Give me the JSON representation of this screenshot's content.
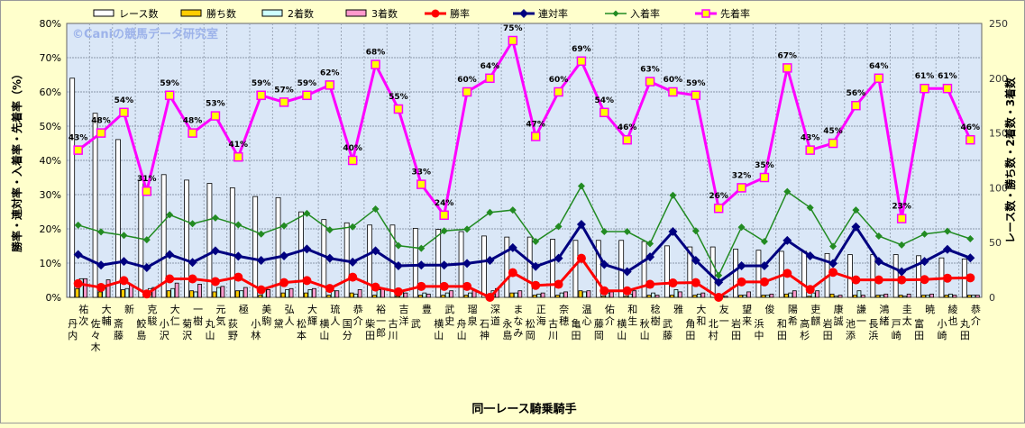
{
  "chart_data": {
    "type": "bar+line",
    "title": "",
    "watermark": "©Caniの競馬データ研究室",
    "xlabel": "同一レース騎乗騎手",
    "ylabel_left": "勝率・連対率・入着率・先着率（%）",
    "ylabel_right": "レース数・勝ち数・2着数・3着数",
    "ylim_left": [
      0,
      80
    ],
    "ylim_right": [
      0,
      250
    ],
    "yticks_left": [
      "0%",
      "10%",
      "20%",
      "30%",
      "40%",
      "50%",
      "60%",
      "70%",
      "80%"
    ],
    "yticks_right": [
      "0",
      "50",
      "100",
      "150",
      "200",
      "250"
    ],
    "legend_position": "top",
    "grid": true,
    "categories": [
      "丹内 祐次",
      "佐々木 大輔",
      "斎藤 新",
      "鮫島 克駿",
      "小沢 大仁",
      "菊沢 一樹",
      "丸山 元気",
      "荻野 極",
      "小林 美駒",
      "黛 弘人",
      "松本 大輝",
      "横山 琉人",
      "国分 恭介",
      "柴田 裕一郎",
      "古川 吉洋",
      "武 豊",
      "横山 武史",
      "舟山 瑠泉",
      "石神 深道",
      "永島 まなみ",
      "松岡 正海",
      "古川 奈穂",
      "亀田 温心",
      "藤岡 佑介",
      "横山 和生",
      "秋山 稔樹",
      "武藤 雅",
      "角田 大和",
      "北村 友一",
      "岩田 望来",
      "浜中 俊",
      "和田 陽希",
      "高杉 吏麒",
      "岩田 康誠",
      "池添 謙一",
      "長浜 鴻緒",
      "戸崎 圭太",
      "富田 暁",
      "小崎 綾也",
      "丸田 恭介"
    ],
    "series": [
      {
        "name": "レース数",
        "type": "bar",
        "axis": "right",
        "color": "#ffffff",
        "values": [
          200,
          168,
          144,
          107,
          112,
          107,
          104,
          100,
          92,
          91,
          78,
          71,
          68,
          66,
          66,
          63,
          62,
          60,
          56,
          55,
          55,
          53,
          52,
          52,
          52,
          51,
          47,
          46,
          46,
          44,
          43,
          42,
          42,
          40,
          39,
          39,
          39,
          38,
          36,
          35
        ]
      },
      {
        "name": "勝ち数",
        "type": "bar",
        "axis": "right",
        "color": "#ffcc00",
        "values": [
          8,
          5,
          7,
          1,
          6,
          6,
          5,
          6,
          2,
          4,
          4,
          2,
          4,
          2,
          1,
          2,
          2,
          2,
          0,
          4,
          2,
          2,
          6,
          1,
          1,
          2,
          2,
          2,
          0,
          2,
          2,
          3,
          1,
          3,
          2,
          2,
          2,
          2,
          2,
          2
        ]
      },
      {
        "name": "2着数",
        "type": "bar",
        "axis": "right",
        "color": "#ccffff",
        "values": [
          17,
          11,
          8,
          8,
          8,
          5,
          9,
          6,
          8,
          7,
          7,
          6,
          3,
          7,
          5,
          4,
          4,
          4,
          6,
          4,
          3,
          4,
          5,
          4,
          3,
          4,
          7,
          3,
          2,
          2,
          2,
          4,
          4,
          1,
          6,
          2,
          1,
          2,
          3,
          2
        ]
      },
      {
        "name": "3着数",
        "type": "bar",
        "axis": "right",
        "color": "#ff99cc",
        "values": [
          17,
          16,
          11,
          9,
          13,
          12,
          10,
          9,
          7,
          8,
          8,
          6,
          7,
          8,
          4,
          3,
          6,
          6,
          8,
          6,
          4,
          5,
          6,
          5,
          6,
          2,
          5,
          4,
          1,
          5,
          3,
          6,
          6,
          2,
          2,
          3,
          3,
          3,
          2,
          2
        ]
      },
      {
        "name": "勝率",
        "type": "line",
        "axis": "left",
        "color": "#ff0000",
        "marker": "circle",
        "values": [
          4.0,
          2.9,
          4.9,
          1.0,
          5.4,
          5.4,
          4.6,
          5.9,
          2.2,
          4.3,
          4.9,
          2.6,
          5.9,
          3.0,
          1.6,
          3.2,
          3.2,
          3.2,
          0,
          7.2,
          3.5,
          3.8,
          11.4,
          1.9,
          1.9,
          3.8,
          4.2,
          4.3,
          0,
          4.5,
          4.5,
          7.0,
          2.3,
          7.3,
          5.1,
          5.1,
          5.1,
          5.2,
          5.6,
          5.7
        ]
      },
      {
        "name": "連対率",
        "type": "line",
        "axis": "left",
        "color": "#000080",
        "marker": "diamond",
        "values": [
          12.5,
          9.4,
          10.5,
          8.7,
          12.5,
          10.2,
          13.6,
          12.0,
          10.8,
          12.1,
          14.1,
          11.4,
          10.3,
          13.6,
          9.2,
          9.4,
          9.4,
          9.9,
          10.8,
          14.5,
          9.0,
          11.4,
          21.3,
          9.6,
          7.5,
          11.8,
          19.2,
          10.8,
          4.4,
          9.2,
          9.2,
          16.6,
          12.1,
          9.9,
          20.6,
          10.5,
          7.5,
          10.5,
          14.0,
          11.5
        ]
      },
      {
        "name": "入着率",
        "type": "line",
        "axis": "left",
        "color": "#228b22",
        "marker": "small-diamond",
        "values": [
          21.1,
          19.1,
          18.1,
          16.8,
          24.1,
          21.5,
          23.2,
          21.2,
          18.5,
          20.9,
          24.5,
          19.7,
          20.6,
          25.8,
          15.1,
          14.3,
          19.4,
          19.9,
          24.8,
          25.5,
          16.3,
          20.7,
          32.5,
          19.2,
          19.2,
          15.7,
          29.8,
          19.4,
          6.4,
          20.5,
          16.3,
          30.9,
          26.2,
          14.9,
          25.5,
          17.9,
          15.3,
          18.5,
          19.3,
          17.1
        ]
      },
      {
        "name": "先着率",
        "type": "line",
        "axis": "left",
        "color": "#ff00ff",
        "marker": "square",
        "marker_fill": "#ffff00",
        "labels": true,
        "values": [
          43,
          48,
          54,
          31,
          59,
          48,
          53,
          41,
          59,
          57,
          59,
          62,
          40,
          68,
          55,
          33,
          24,
          60,
          64,
          75,
          47,
          60,
          69,
          54,
          46,
          63,
          60,
          59,
          26,
          32,
          35,
          67,
          43,
          45,
          56,
          64,
          23,
          61,
          61,
          46
        ]
      }
    ]
  }
}
